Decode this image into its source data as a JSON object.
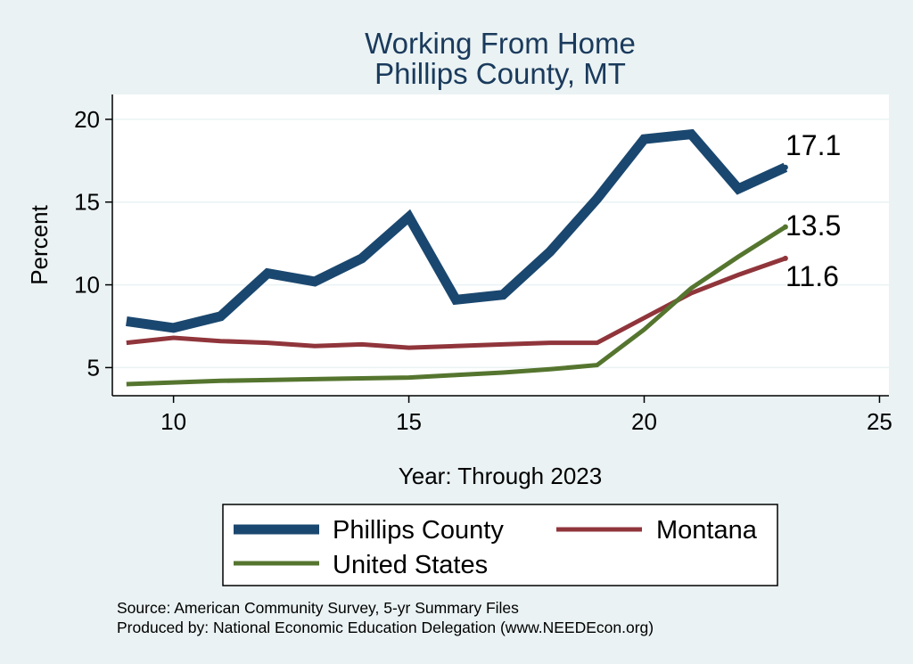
{
  "chart_data": {
    "type": "line",
    "title": [
      "Working From Home",
      "Phillips County, MT"
    ],
    "xlabel": "Year: Through 2023",
    "ylabel": "Percent",
    "xlim": [
      8.7,
      25.2
    ],
    "ylim": [
      3.3,
      21.5
    ],
    "xticks": [
      10,
      15,
      20,
      25
    ],
    "yticks": [
      5,
      10,
      15,
      20
    ],
    "grid": true,
    "legend_position": "bottom",
    "x": [
      9,
      10,
      11,
      12,
      13,
      14,
      15,
      16,
      17,
      18,
      19,
      20,
      21,
      22,
      23
    ],
    "series": [
      {
        "name": "Phillips County",
        "color": "#1a476f",
        "values": [
          7.8,
          7.4,
          8.1,
          10.7,
          10.2,
          11.6,
          14.1,
          9.1,
          9.4,
          12.0,
          15.2,
          18.8,
          19.1,
          15.8,
          17.1
        ],
        "end_label": "17.1"
      },
      {
        "name": "Montana",
        "color": "#90353b",
        "values": [
          6.5,
          6.8,
          6.6,
          6.5,
          6.3,
          6.4,
          6.2,
          6.3,
          6.4,
          6.5,
          6.5,
          8.0,
          9.5,
          10.6,
          11.6
        ],
        "end_label": "11.6"
      },
      {
        "name": "United States",
        "color": "#55752f",
        "values": [
          4.0,
          4.1,
          4.2,
          4.25,
          4.3,
          4.35,
          4.4,
          4.55,
          4.7,
          4.9,
          5.15,
          7.3,
          9.8,
          11.7,
          13.5
        ],
        "end_label": "13.5"
      }
    ]
  },
  "source": "Source: American Community Survey, 5-yr Summary Files",
  "produced_by": "Produced by: National Economic Education Delegation (www.NEEDEcon.org)"
}
